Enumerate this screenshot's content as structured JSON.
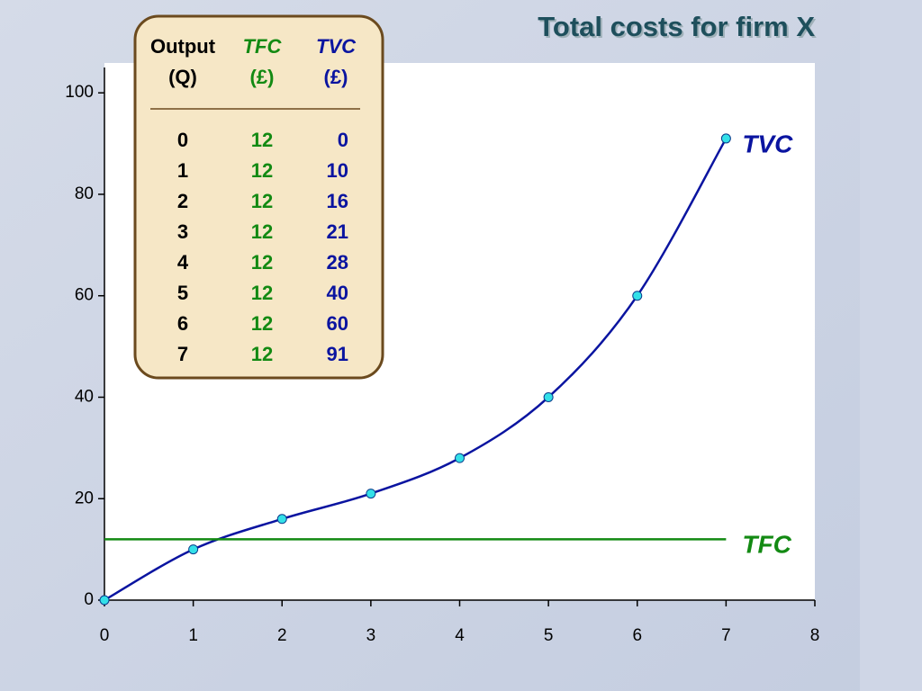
{
  "chart_data": {
    "type": "line",
    "title": "Total costs for firm X",
    "x": [
      0,
      1,
      2,
      3,
      4,
      5,
      6,
      7
    ],
    "series": [
      {
        "name": "TVC",
        "color": "#0a14a0",
        "values": [
          0,
          10,
          16,
          21,
          28,
          40,
          60,
          91
        ],
        "markers": true,
        "smooth": true
      },
      {
        "name": "TFC",
        "color": "#138a13",
        "values": [
          12,
          12,
          12,
          12,
          12,
          12,
          12,
          12
        ],
        "markers": false,
        "smooth": false
      }
    ],
    "xlim": [
      0,
      8
    ],
    "xticks": [
      0,
      1,
      2,
      3,
      4,
      5,
      6,
      7,
      8
    ],
    "ylim": [
      0,
      105
    ],
    "yticks": [
      0,
      20,
      40,
      60,
      80,
      100
    ],
    "grid": false
  },
  "table": {
    "headers": [
      [
        "Output",
        "(Q)"
      ],
      [
        "TFC",
        "(£)"
      ],
      [
        "TVC",
        "(£)"
      ]
    ]
  }
}
